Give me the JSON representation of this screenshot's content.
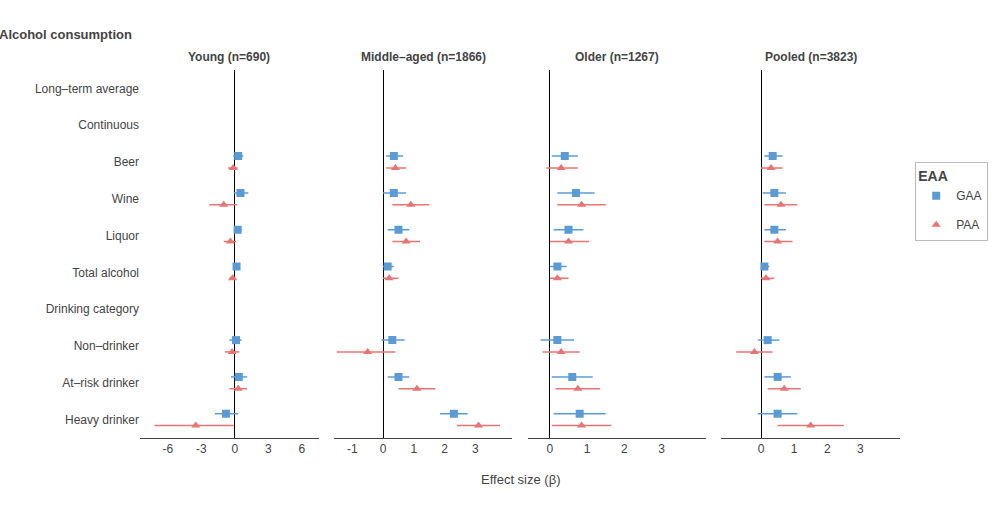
{
  "chart_data": {
    "type": "forest",
    "xlabel": "Effect size (β)",
    "annotations": [
      "Alcohol consumption"
    ],
    "legend_title": "EAA",
    "grid": false,
    "categories": [
      "Long–term average",
      "Continuous",
      "Beer",
      "Wine",
      "Liquor",
      "Total alcohol",
      "Drinking category",
      "Non–drinker",
      "At–risk drinker",
      "Heavy drinker"
    ],
    "panels": [
      {
        "title": "Young (n=690)",
        "xlim": [
          -8.5,
          7.5
        ],
        "xticks": [
          -6,
          -3,
          0,
          3,
          6
        ],
        "series": [
          {
            "name": "GAA",
            "color": "#5B9BD5",
            "marker": "square",
            "values": [
              null,
              null,
              0.3,
              0.5,
              0.25,
              0.15,
              null,
              0.1,
              0.35,
              -0.8
            ],
            "lower": [
              null,
              null,
              -0.15,
              -0.1,
              -0.1,
              0.0,
              null,
              -0.5,
              -0.35,
              -1.8
            ],
            "upper": [
              null,
              null,
              0.75,
              1.2,
              0.6,
              0.35,
              null,
              0.6,
              1.1,
              0.3
            ]
          },
          {
            "name": "PAA",
            "color": "#E87474",
            "marker": "triangle",
            "values": [
              null,
              null,
              -0.15,
              -1.0,
              -0.4,
              -0.2,
              null,
              -0.25,
              0.3,
              -3.5
            ],
            "lower": [
              null,
              null,
              -0.6,
              -2.3,
              -1.0,
              -0.5,
              null,
              -0.9,
              -0.5,
              -7.2
            ],
            "upper": [
              null,
              null,
              0.25,
              0.2,
              0.1,
              0.1,
              null,
              0.4,
              1.1,
              -0.1
            ]
          }
        ]
      },
      {
        "title": "Middle–aged (n=1866)",
        "xlim": [
          -1.6,
          4.2
        ],
        "xticks": [
          -1,
          0,
          1,
          2,
          3
        ],
        "series": [
          {
            "name": "GAA",
            "color": "#5B9BD5",
            "marker": "square",
            "values": [
              null,
              null,
              0.35,
              0.35,
              0.5,
              0.15,
              null,
              0.3,
              0.5,
              2.3
            ],
            "lower": [
              null,
              null,
              0.1,
              0.0,
              0.15,
              0.0,
              null,
              -0.05,
              0.15,
              1.85
            ],
            "upper": [
              null,
              null,
              0.65,
              0.75,
              0.85,
              0.35,
              null,
              0.7,
              0.85,
              2.75
            ]
          },
          {
            "name": "PAA",
            "color": "#E87474",
            "marker": "triangle",
            "values": [
              null,
              null,
              0.4,
              0.9,
              0.75,
              0.2,
              null,
              -0.5,
              1.1,
              3.1
            ],
            "lower": [
              null,
              null,
              0.1,
              0.3,
              0.3,
              0.0,
              null,
              -1.5,
              0.5,
              2.4
            ],
            "upper": [
              null,
              null,
              0.75,
              1.5,
              1.2,
              0.5,
              null,
              0.4,
              1.7,
              3.8
            ]
          }
        ]
      },
      {
        "title": "Older (n=1267)",
        "xlim": [
          -0.6,
          4.2
        ],
        "xticks": [
          0,
          1,
          2,
          3
        ],
        "series": [
          {
            "name": "GAA",
            "color": "#5B9BD5",
            "marker": "square",
            "values": [
              null,
              null,
              0.4,
              0.7,
              0.5,
              0.2,
              null,
              0.2,
              0.6,
              0.8
            ],
            "lower": [
              null,
              null,
              0.05,
              0.2,
              0.1,
              0.0,
              null,
              -0.25,
              0.05,
              0.1
            ],
            "upper": [
              null,
              null,
              0.75,
              1.2,
              0.9,
              0.45,
              null,
              0.65,
              1.15,
              1.5
            ]
          },
          {
            "name": "PAA",
            "color": "#E87474",
            "marker": "triangle",
            "values": [
              null,
              null,
              0.3,
              0.85,
              0.5,
              0.2,
              null,
              0.3,
              0.75,
              0.85
            ],
            "lower": [
              null,
              null,
              -0.1,
              0.2,
              0.0,
              0.0,
              null,
              -0.2,
              0.15,
              0.05
            ],
            "upper": [
              null,
              null,
              0.75,
              1.5,
              1.05,
              0.5,
              null,
              0.8,
              1.35,
              1.65
            ]
          }
        ]
      },
      {
        "title": "Pooled (n=3823)",
        "xlim": [
          -1.2,
          4.2
        ],
        "xticks": [
          0,
          1,
          2,
          3
        ],
        "series": [
          {
            "name": "GAA",
            "color": "#5B9BD5",
            "marker": "square",
            "values": [
              null,
              null,
              0.35,
              0.4,
              0.4,
              0.1,
              null,
              0.2,
              0.5,
              0.5
            ],
            "lower": [
              null,
              null,
              0.1,
              0.05,
              0.1,
              0.0,
              null,
              -0.1,
              0.1,
              -0.1
            ],
            "upper": [
              null,
              null,
              0.65,
              0.75,
              0.75,
              0.25,
              null,
              0.55,
              0.9,
              1.1
            ]
          },
          {
            "name": "PAA",
            "color": "#E87474",
            "marker": "triangle",
            "values": [
              null,
              null,
              0.3,
              0.6,
              0.5,
              0.15,
              null,
              -0.2,
              0.7,
              1.5
            ],
            "lower": [
              null,
              null,
              0.0,
              0.1,
              0.1,
              0.0,
              null,
              -0.75,
              0.2,
              0.5
            ],
            "upper": [
              null,
              null,
              0.65,
              1.1,
              0.95,
              0.4,
              null,
              0.35,
              1.2,
              2.5
            ]
          }
        ]
      }
    ]
  }
}
